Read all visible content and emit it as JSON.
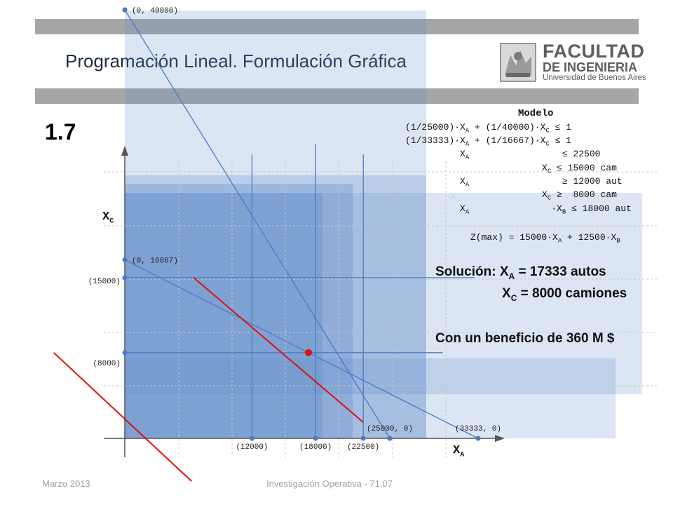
{
  "header": {
    "title": "Programación Lineal. Formulación Gráfica",
    "logo": {
      "line1": "FACULTAD",
      "line2": "DE INGENIERIA",
      "line3": "Universidad de Buenos Aires"
    }
  },
  "slide_number": "1.7",
  "model": {
    "heading": "Modelo",
    "lines": [
      {
        "pre": "(1/25000)·X",
        "a": "A",
        "mid": " + (1/40000)·X",
        "b": "C",
        "post": " ≤ 1"
      },
      {
        "pre": "(1/33333)·X",
        "a": "A",
        "mid": " + (1/16667)·X",
        "b": "C",
        "post": " ≤ 1"
      },
      {
        "pre": "          X",
        "a": "A",
        "mid": "                ",
        "b": "",
        "post": " ≤ 22500"
      },
      {
        "pre": "                         X",
        "a": "C",
        "mid": "",
        "b": "",
        "post": " ≤ 15000 cam"
      },
      {
        "pre": "          X",
        "a": "A",
        "mid": "                ",
        "b": "",
        "post": " ≥ 12000 aut"
      },
      {
        "pre": "                         X",
        "a": "C",
        "mid": "",
        "b": "",
        "post": " ≥  8000 cam"
      },
      {
        "pre": "          X",
        "a": "A",
        "mid": "               ·X",
        "b": "B",
        "post": " ≤ 18000 aut"
      }
    ],
    "objective": {
      "pre": "Z(max) = 15000·X",
      "a": "A",
      "mid": " + 12500·X",
      "b": "B"
    },
    "ghost_label": {
      "pre": "X",
      "a": "A"
    }
  },
  "solution": {
    "line1": {
      "pre": "Solución: X",
      "sub": "A",
      "post": " = 17333 autos"
    },
    "line2": {
      "pre": "X",
      "sub": "C",
      "post": " = 8000 camiones"
    },
    "line3": "Con un beneficio de 360 M $"
  },
  "footer": {
    "left": "Marzo 2013",
    "center": "Investigación Operativa - 71.07"
  },
  "chart_data": {
    "type": "line",
    "xlabel": {
      "pre": "X",
      "sub": "A"
    },
    "ylabel": {
      "pre": "X",
      "sub": "C"
    },
    "xlim": [
      0,
      36000
    ],
    "ylim": [
      0,
      40000
    ],
    "point_labels": [
      {
        "id": "p-0-40000",
        "text": "(0, 40000)",
        "x": 0,
        "y": 40000
      },
      {
        "id": "p-0-16667",
        "text": "(0, 16667)",
        "x": 0,
        "y": 16667
      },
      {
        "id": "p-25000-0",
        "text": "(25000, 0)",
        "x": 25000,
        "y": 0
      },
      {
        "id": "p-33333-0",
        "text": "(33333, 0)",
        "x": 33333,
        "y": 0
      }
    ],
    "x_ticks": [
      {
        "text": "(12000)",
        "value": 12000
      },
      {
        "text": "(18000)",
        "value": 18000
      },
      {
        "text": "(22500)",
        "value": 22500
      }
    ],
    "y_ticks": [
      {
        "text": "(15000)",
        "value": 15000
      },
      {
        "text": "(8000)",
        "value": 8000
      }
    ],
    "constraints": [
      {
        "name": "(1/25000)·XA + (1/40000)·XC ≤ 1",
        "x": [
          0,
          25000
        ],
        "y": [
          40000,
          0
        ]
      },
      {
        "name": "(1/33333)·XA + (1/16667)·XC ≤ 1",
        "x": [
          0,
          33333
        ],
        "y": [
          16667,
          0
        ]
      },
      {
        "name": "XA ≤ 22500",
        "x": [
          22500,
          22500
        ],
        "y": [
          0,
          26500
        ]
      },
      {
        "name": "XC ≤ 15000",
        "x": [
          0,
          33000
        ],
        "y": [
          15000,
          15000
        ]
      },
      {
        "name": "XA ≥ 12000",
        "x": [
          12000,
          12000
        ],
        "y": [
          0,
          26500
        ]
      },
      {
        "name": "XC ≥ 8000",
        "x": [
          0,
          30000
        ],
        "y": [
          8000,
          8000
        ]
      },
      {
        "name": "XA ≤ 18000",
        "x": [
          18000,
          18000
        ],
        "y": [
          0,
          27500
        ]
      }
    ],
    "objective_lines": [
      {
        "x": [
          6500,
          22500
        ],
        "y": [
          15000,
          1500
        ]
      },
      {
        "x": [
          -6700,
          6300
        ],
        "y": [
          8000,
          -4000
        ]
      }
    ],
    "optimum": {
      "x": 17333,
      "y": 8000
    },
    "colors": {
      "line": "#4a7cc4",
      "objective": "#e01010",
      "optimum": "#e01010",
      "fill": "#5b87c8",
      "axis": "#555555",
      "grid": "#c8c8c8"
    }
  }
}
